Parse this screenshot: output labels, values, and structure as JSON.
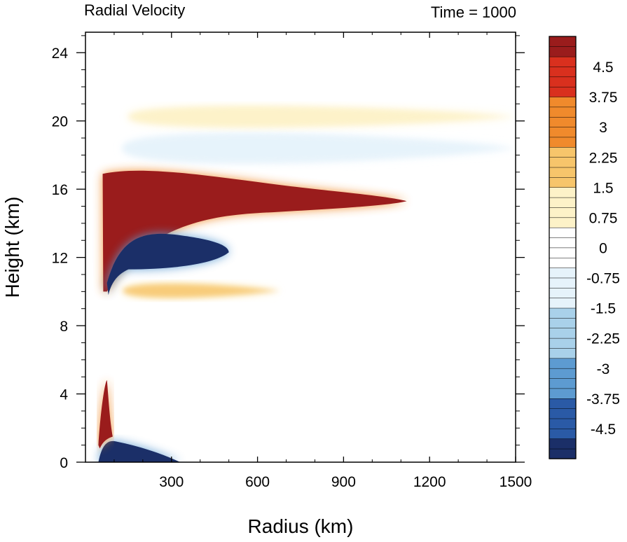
{
  "chart_data": {
    "type": "heatmap",
    "title_left": "Radial Velocity",
    "title_right": "Time = 1000",
    "xlabel": "Radius (km)",
    "ylabel": "Height (km)",
    "xlim": [
      0,
      1500
    ],
    "ylim": [
      0,
      25.2
    ],
    "x_ticks": [
      300,
      600,
      900,
      1200,
      1500
    ],
    "y_ticks": [
      0,
      4,
      8,
      12,
      16,
      20,
      24
    ],
    "colorbar": {
      "range": [
        -5.25,
        5.25
      ],
      "step": 0.25,
      "labels": [
        "4.5",
        "3.75",
        "3",
        "2.25",
        "1.5",
        "0.75",
        "0",
        "-0.75",
        "-1.5",
        "-2.25",
        "-3",
        "-3.75",
        "-4.5"
      ],
      "label_values": [
        4.5,
        3.75,
        3,
        2.25,
        1.5,
        0.75,
        0,
        -0.75,
        -1.5,
        -2.25,
        -3,
        -3.75,
        -4.5
      ],
      "colors": [
        "#1b2f68",
        "#2a5aa6",
        "#5d9bd1",
        "#a9d1ea",
        "#e6f3fb",
        "#ffffff",
        "#fdf2c8",
        "#f7c56b",
        "#f08a2c",
        "#d9301e",
        "#9a1c1c"
      ]
    },
    "features": [
      {
        "name": "upper outflow",
        "value": 5,
        "x": [
          60,
          1120
        ],
        "y": [
          14.3,
          17.3
        ]
      },
      {
        "name": "inflow below outflow",
        "value": -5,
        "x": [
          70,
          500
        ],
        "y": [
          11.2,
          13.6
        ]
      },
      {
        "name": "mid-level outflow",
        "value": 2.5,
        "x": [
          130,
          680
        ],
        "y": [
          9.5,
          10.6
        ]
      },
      {
        "name": "boundary-layer inflow",
        "value": -5,
        "x": [
          40,
          330
        ],
        "y": [
          0,
          1.5
        ]
      },
      {
        "name": "low-level outflow",
        "value": 5,
        "x": [
          40,
          90
        ],
        "y": [
          1.5,
          5
        ]
      },
      {
        "name": "upper inflow",
        "value": -1.5,
        "x": [
          130,
          1500
        ],
        "y": [
          17.3,
          19.5
        ]
      },
      {
        "name": "tropopause outflow",
        "value": 1.5,
        "x": [
          150,
          1500
        ],
        "y": [
          19.5,
          21
        ]
      }
    ]
  }
}
